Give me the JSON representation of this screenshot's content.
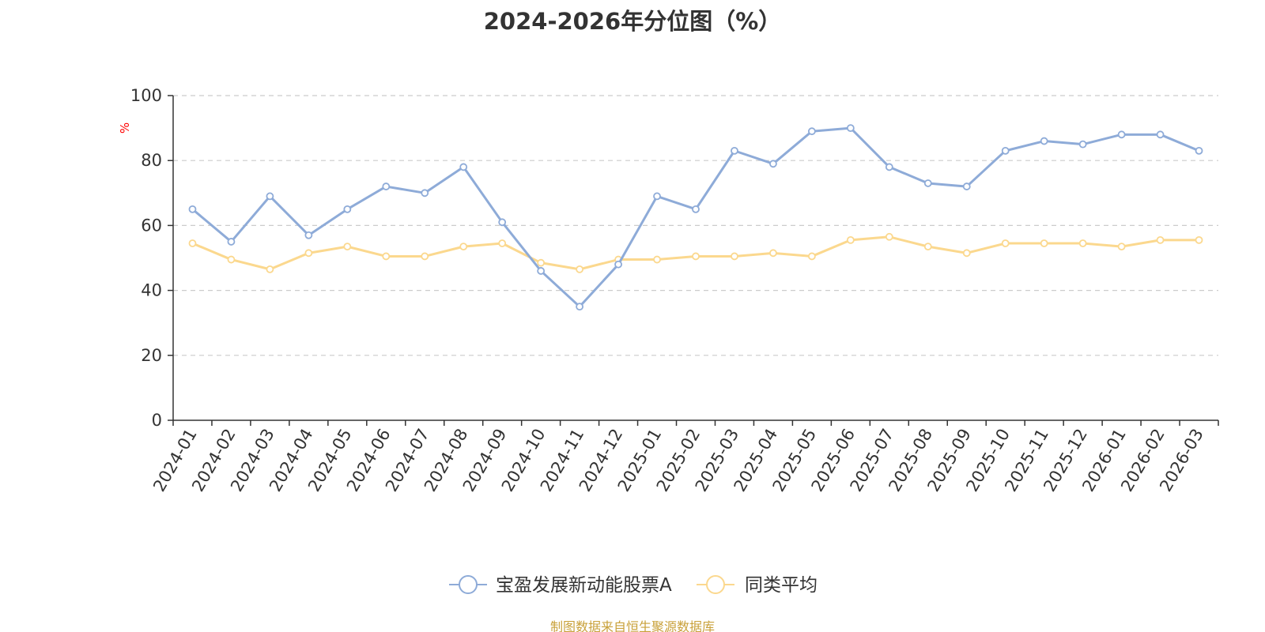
{
  "chart_data": {
    "type": "line",
    "title": "2024-2026年分位图（%）",
    "ylabel": "%",
    "ylim": [
      0,
      100
    ],
    "yticks": [
      0,
      20,
      40,
      60,
      80,
      100
    ],
    "grid": true,
    "legend_position": "bottom",
    "categories": [
      "2024-01",
      "2024-02",
      "2024-03",
      "2024-04",
      "2024-05",
      "2024-06",
      "2024-07",
      "2024-08",
      "2024-09",
      "2024-10",
      "2024-11",
      "2024-12",
      "2025-01",
      "2025-02",
      "2025-03",
      "2025-04",
      "2025-05",
      "2025-06",
      "2025-07",
      "2025-08",
      "2025-09",
      "2025-10",
      "2025-11",
      "2025-12",
      "2026-01",
      "2026-02",
      "2026-03"
    ],
    "series": [
      {
        "name": "宝盈发展新动能股票A",
        "color": "#8eabd8",
        "values": [
          65,
          55,
          69,
          57,
          65,
          72,
          70,
          78,
          61,
          46,
          35,
          48,
          69,
          65,
          83,
          79,
          89,
          90,
          78,
          73,
          72,
          83,
          86,
          85,
          88,
          88,
          83
        ]
      },
      {
        "name": "同类平均",
        "color": "#fbd88e",
        "values": [
          54.5,
          49.5,
          46.5,
          51.5,
          53.5,
          50.5,
          50.5,
          53.5,
          54.5,
          48.5,
          46.5,
          49.5,
          49.5,
          50.5,
          50.5,
          51.5,
          50.5,
          55.5,
          56.5,
          53.5,
          51.5,
          54.5,
          54.5,
          54.5,
          53.5,
          55.5,
          55.5
        ]
      }
    ]
  },
  "source": "制图数据来自恒生聚源数据库"
}
